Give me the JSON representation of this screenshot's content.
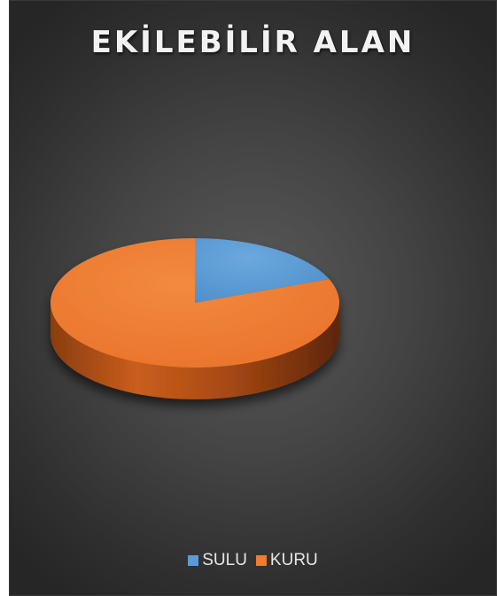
{
  "chart_data": {
    "type": "pie",
    "title": "EKİLEBİLİR ALAN",
    "style": "3d",
    "categories": [
      "SULU",
      "KURU"
    ],
    "values": [
      19,
      81
    ],
    "colors": [
      "#5b9bd5",
      "#ed7d31"
    ],
    "legend_position": "bottom"
  },
  "legend": {
    "items": [
      {
        "label": "SULU",
        "color": "#5b9bd5"
      },
      {
        "label": "KURU",
        "color": "#ed7d31"
      }
    ]
  }
}
